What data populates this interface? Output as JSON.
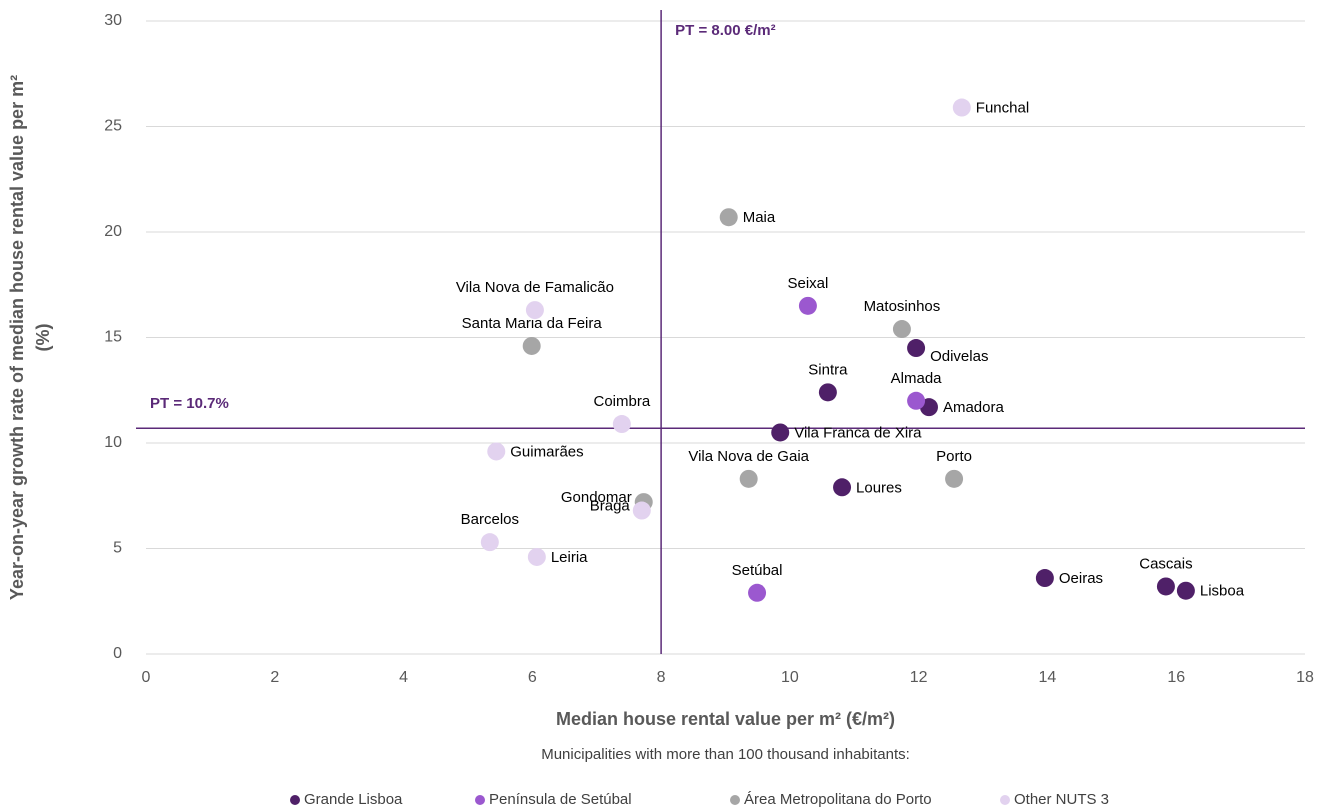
{
  "chart_data": {
    "type": "scatter",
    "xlabel": "Median house rental value per m² (€/m²)",
    "ylabel": [
      "Year-on-year growth rate of median house rental value per m²",
      "(%)"
    ],
    "legend_title": "Municipalities with more than 100 thousand inhabitants:",
    "legend": "bottom",
    "grid": true,
    "xlim": [
      0,
      18
    ],
    "xticks": [
      0,
      2,
      4,
      6,
      8,
      10,
      12,
      14,
      16,
      18
    ],
    "ylim": [
      0,
      30
    ],
    "yticks": [
      0,
      5,
      10,
      15,
      20,
      25,
      30
    ],
    "reference_lines": [
      {
        "axis": "x",
        "value": 8,
        "label": "PT = 8.00 €/m²",
        "color": "#5b2a78"
      },
      {
        "axis": "y",
        "value": 10.7,
        "label": "PT = 10.7%",
        "color": "#5b2a78"
      }
    ],
    "series": [
      {
        "name": "Grande Lisboa",
        "color": "#4f2068",
        "labels": [
          "Lisboa",
          "Cascais",
          "Oeiras",
          "Sintra",
          "Odivelas",
          "Amadora",
          "Loures",
          "Vila Franca de Xira"
        ],
        "x": [
          16.15,
          15.84,
          13.96,
          10.59,
          11.96,
          12.16,
          10.81,
          9.85
        ],
        "values": [
          3.0,
          3.2,
          3.6,
          12.4,
          14.5,
          11.7,
          7.9,
          10.5
        ]
      },
      {
        "name": "Península de Setúbal",
        "color": "#9b58cf",
        "labels": [
          "Seixal",
          "Almada",
          "Setúbal"
        ],
        "x": [
          10.28,
          11.96,
          9.49
        ],
        "values": [
          16.5,
          12.0,
          2.9
        ]
      },
      {
        "name": "Área Metropolitana do Porto",
        "color": "#a6a6a6",
        "labels": [
          "Maia",
          "Matosinhos",
          "Santa Maria da Feira",
          "Vila Nova de Gaia",
          "Porto",
          "Gondomar"
        ],
        "x": [
          9.05,
          11.74,
          5.99,
          9.36,
          12.55,
          7.73
        ],
        "values": [
          20.7,
          15.4,
          14.6,
          8.3,
          8.3,
          7.2
        ]
      },
      {
        "name": "Other NUTS 3",
        "color": "#e2d2ef",
        "labels": [
          "Funchal",
          "Vila Nova de Famalicão",
          "Coimbra",
          "Guimarães",
          "Braga",
          "Barcelos",
          "Leiria"
        ],
        "x": [
          12.67,
          6.04,
          7.39,
          5.44,
          7.7,
          5.34,
          6.07
        ],
        "values": [
          25.9,
          16.3,
          10.9,
          9.6,
          6.8,
          5.3,
          4.6
        ]
      }
    ]
  }
}
